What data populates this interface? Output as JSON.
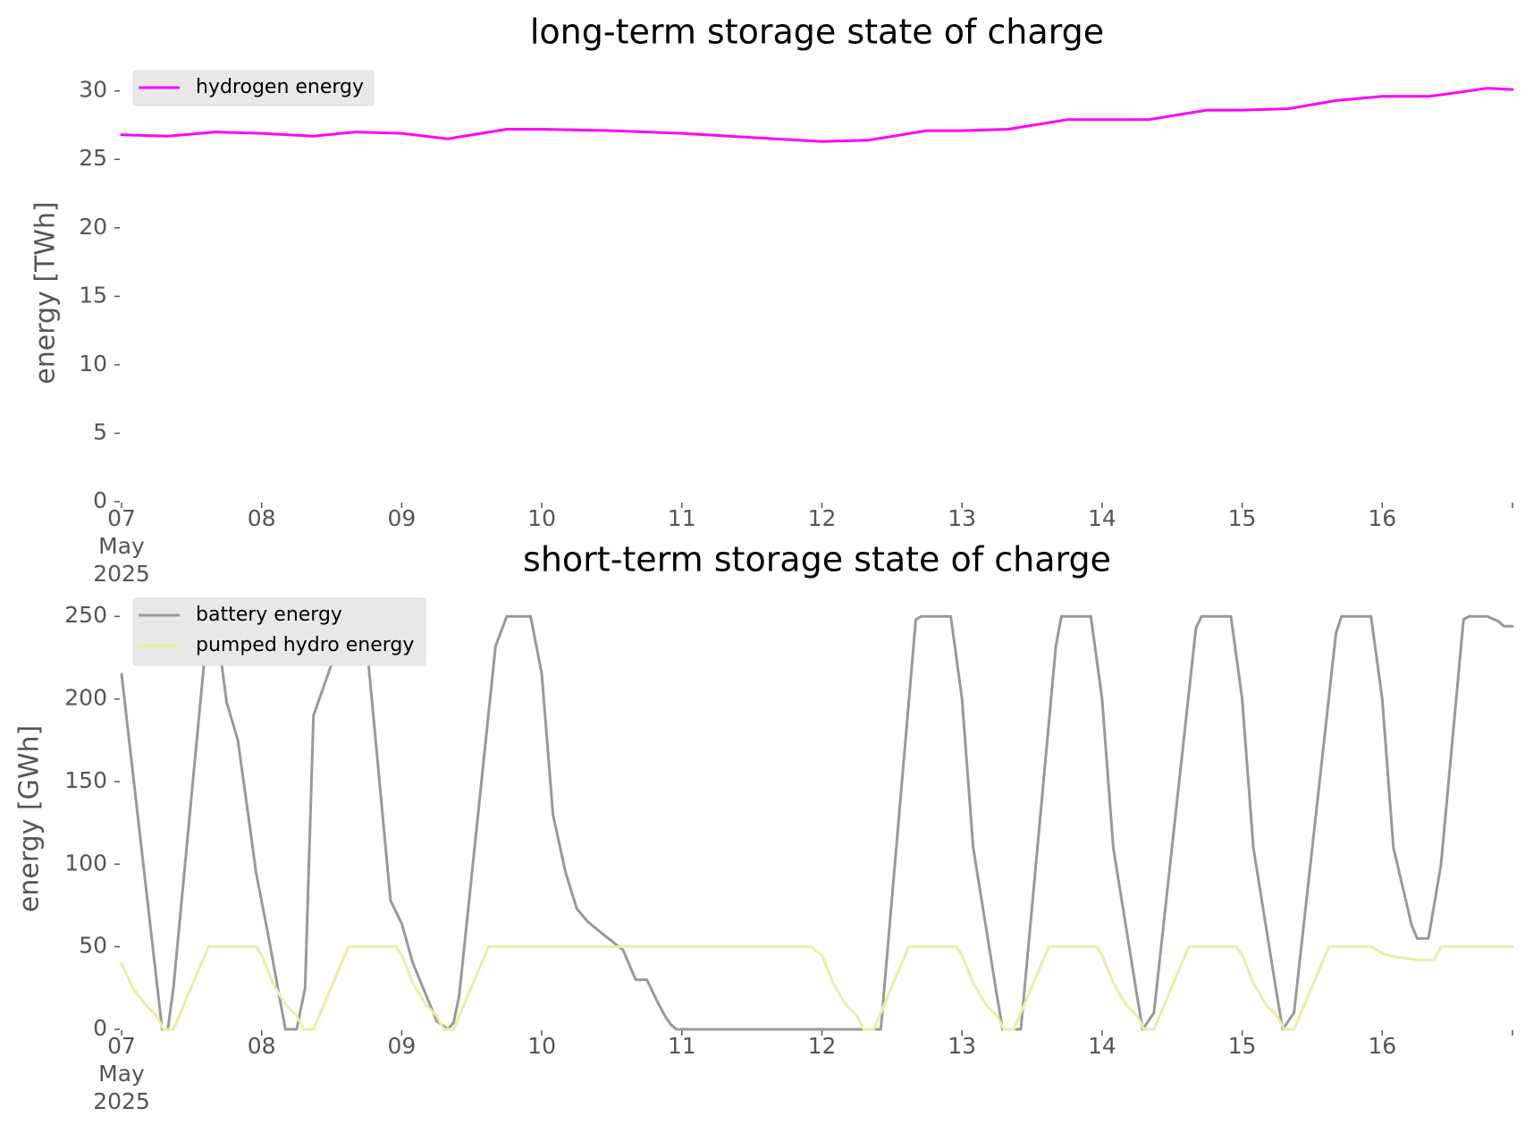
{
  "chart_data": [
    {
      "type": "line",
      "title": "long-term storage state of charge",
      "xlabel": "",
      "ylabel": "energy [TWh]",
      "ylim": [
        0,
        30.5
      ],
      "yticks": [
        0,
        5,
        10,
        15,
        20,
        25,
        30
      ],
      "xlim": [
        0,
        9.93
      ],
      "x_unit": "days since 2025-05-07 00:00",
      "xtick_labels": [
        "07\nMay\n2025",
        "08",
        "09",
        "10",
        "11",
        "12",
        "13",
        "14",
        "15",
        "16"
      ],
      "grid": false,
      "legend": "top-left",
      "series": [
        {
          "name": "hydrogen energy",
          "color": "#ff00ff",
          "x": [
            0,
            0.33,
            0.67,
            1.0,
            1.37,
            1.67,
            2.0,
            2.33,
            2.75,
            3.0,
            3.5,
            4.0,
            4.5,
            4.67,
            5.0,
            5.33,
            5.75,
            6.0,
            6.33,
            6.75,
            7.0,
            7.33,
            7.75,
            8.0,
            8.33,
            8.67,
            9.0,
            9.33,
            9.55,
            9.75,
            9.93
          ],
          "y": [
            26.8,
            26.7,
            27.0,
            26.9,
            26.7,
            27.0,
            26.9,
            26.5,
            27.2,
            27.2,
            27.1,
            26.9,
            26.6,
            26.5,
            26.3,
            26.4,
            27.1,
            27.1,
            27.2,
            27.9,
            27.9,
            27.9,
            28.6,
            28.6,
            28.7,
            29.3,
            29.6,
            29.6,
            29.9,
            30.2,
            30.1
          ]
        }
      ]
    },
    {
      "type": "line",
      "title": "short-term storage state of charge",
      "xlabel": "",
      "ylabel": "energy [GWh]",
      "ylim": [
        0,
        255
      ],
      "yticks": [
        0,
        50,
        100,
        150,
        200,
        250
      ],
      "xlim": [
        0,
        9.93
      ],
      "x_unit": "days since 2025-05-07 00:00",
      "xtick_labels": [
        "07\nMay\n2025",
        "08",
        "09",
        "10",
        "11",
        "12",
        "13",
        "14",
        "15",
        "16"
      ],
      "grid": false,
      "legend": "top-left",
      "series": [
        {
          "name": "battery energy",
          "color": "#999999",
          "x": [
            0,
            0.29,
            0.33,
            0.37,
            0.62,
            0.67,
            0.75,
            0.83,
            0.92,
            0.96,
            1.04,
            1.17,
            1.25,
            1.31,
            1.37,
            1.62,
            1.67,
            1.75,
            1.83,
            1.92,
            2.0,
            2.08,
            2.25,
            2.33,
            2.37,
            2.41,
            2.67,
            2.75,
            2.83,
            2.92,
            3.0,
            3.08,
            3.17,
            3.25,
            3.33,
            3.46,
            3.58,
            3.67,
            3.75,
            3.83,
            3.88,
            3.92,
            3.96,
            4.0,
            4.08,
            4.67,
            5.0,
            5.29,
            5.42,
            5.67,
            5.71,
            5.75,
            5.92,
            6.0,
            6.08,
            6.25,
            6.29,
            6.37,
            6.42,
            6.67,
            6.71,
            6.75,
            6.92,
            7.0,
            7.08,
            7.25,
            7.29,
            7.37,
            7.67,
            7.71,
            7.75,
            7.92,
            8.0,
            8.08,
            8.25,
            8.29,
            8.37,
            8.67,
            8.71,
            8.75,
            8.92,
            9.0,
            9.08,
            9.21,
            9.25,
            9.33,
            9.42,
            9.58,
            9.62,
            9.67,
            9.75,
            9.83,
            9.87,
            9.93
          ],
          "y": [
            215,
            0,
            0,
            25,
            250,
            250,
            198,
            175,
            120,
            95,
            60,
            0,
            0,
            25,
            190,
            250,
            250,
            233,
            160,
            78,
            64,
            40,
            5,
            0,
            4,
            20,
            232,
            250,
            250,
            250,
            215,
            130,
            95,
            73,
            65,
            56,
            48,
            30,
            30,
            16,
            8,
            3,
            0,
            0,
            0,
            0,
            0,
            0,
            0,
            248,
            250,
            250,
            250,
            200,
            110,
            20,
            0,
            0,
            0,
            232,
            250,
            250,
            250,
            200,
            110,
            20,
            0,
            10,
            243,
            250,
            250,
            250,
            200,
            110,
            20,
            0,
            10,
            240,
            250,
            250,
            250,
            200,
            110,
            63,
            55,
            55,
            100,
            248,
            250,
            250,
            250,
            247,
            244,
            244
          ]
        },
        {
          "name": "pumped hydro energy",
          "color": "#ddf5a4",
          "x": [
            0,
            0.08,
            0.17,
            0.25,
            0.3,
            0.37,
            0.62,
            0.67,
            0.96,
            1.0,
            1.08,
            1.17,
            1.25,
            1.3,
            1.37,
            1.62,
            1.67,
            1.96,
            2.0,
            2.08,
            2.17,
            2.25,
            2.3,
            2.37,
            2.62,
            2.67,
            4.92,
            5.0,
            5.08,
            5.17,
            5.25,
            5.3,
            5.37,
            5.62,
            5.67,
            5.96,
            6.0,
            6.08,
            6.17,
            6.25,
            6.3,
            6.37,
            6.62,
            6.67,
            6.96,
            7.0,
            7.08,
            7.17,
            7.25,
            7.3,
            7.37,
            7.62,
            7.67,
            7.96,
            8.0,
            8.08,
            8.17,
            8.25,
            8.3,
            8.37,
            8.62,
            8.67,
            8.92,
            9.0,
            9.08,
            9.17,
            9.25,
            9.29,
            9.33,
            9.37,
            9.42,
            9.5,
            9.93
          ],
          "y": [
            40,
            25,
            15,
            8,
            0,
            0,
            50,
            50,
            50,
            45,
            28,
            15,
            8,
            0,
            0,
            50,
            50,
            50,
            45,
            28,
            15,
            8,
            0,
            0,
            50,
            50,
            50,
            45,
            28,
            15,
            8,
            0,
            0,
            50,
            50,
            50,
            45,
            28,
            15,
            8,
            0,
            0,
            50,
            50,
            50,
            45,
            28,
            15,
            8,
            0,
            0,
            50,
            50,
            50,
            45,
            28,
            15,
            8,
            0,
            0,
            50,
            50,
            50,
            46,
            44,
            43,
            42,
            42,
            42,
            42,
            50,
            50,
            50
          ]
        }
      ]
    }
  ]
}
